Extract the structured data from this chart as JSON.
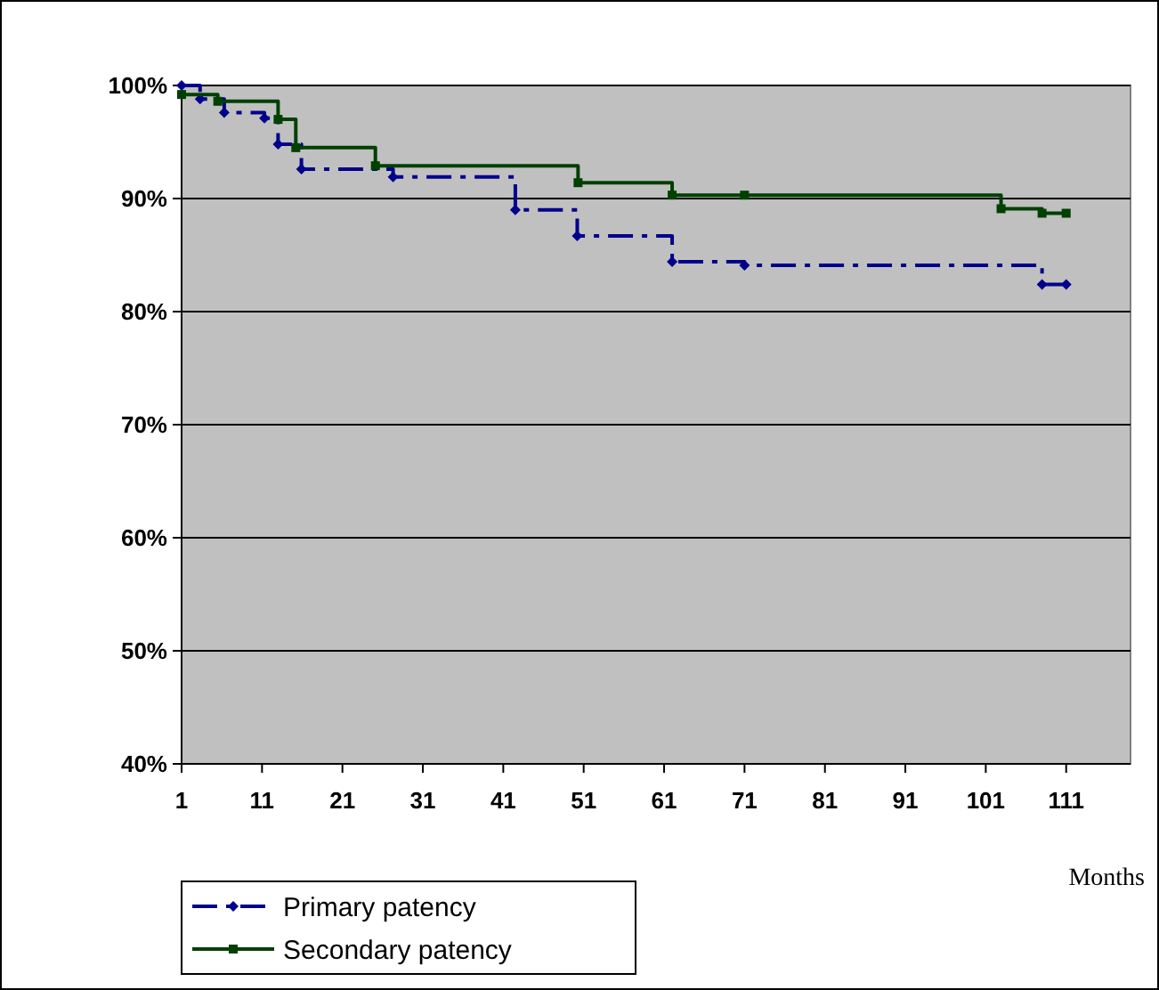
{
  "chart_data": {
    "type": "step",
    "xlabel": "Months",
    "xlim": [
      1,
      119
    ],
    "xticks": [
      1,
      11,
      21,
      31,
      41,
      51,
      61,
      71,
      81,
      91,
      101,
      111
    ],
    "ylim": [
      40,
      100
    ],
    "yticks": [
      {
        "value": 40,
        "label": "40%"
      },
      {
        "value": 50,
        "label": "50%"
      },
      {
        "value": 60,
        "label": "60%"
      },
      {
        "value": 70,
        "label": "70%"
      },
      {
        "value": 80,
        "label": "80%"
      },
      {
        "value": 90,
        "label": "90%"
      },
      {
        "value": 100,
        "label": "100%"
      }
    ],
    "grid": "y",
    "legend": "bottom left",
    "series": [
      {
        "name": "Primary patency",
        "color": "#00008b",
        "marker": "diamond",
        "line_style": "dashed",
        "x": [
          1,
          3.3,
          6.3,
          11.3,
          13,
          15.9,
          27.3,
          42.5,
          50.2,
          62,
          71,
          108,
          111
        ],
        "values": [
          100,
          98.8,
          97.6,
          97.1,
          94.8,
          92.6,
          91.9,
          89.0,
          86.7,
          84.4,
          84.1,
          82.4,
          82.4
        ]
      },
      {
        "name": "Secondary patency",
        "color": "#004000",
        "marker": "square",
        "line_style": "solid",
        "x": [
          1,
          5.5,
          13,
          15.2,
          25.1,
          50.3,
          62,
          71,
          102.9,
          108,
          111
        ],
        "values": [
          99.2,
          98.6,
          97.0,
          94.5,
          92.9,
          91.4,
          90.3,
          90.3,
          89.1,
          88.7,
          88.7
        ]
      }
    ]
  }
}
